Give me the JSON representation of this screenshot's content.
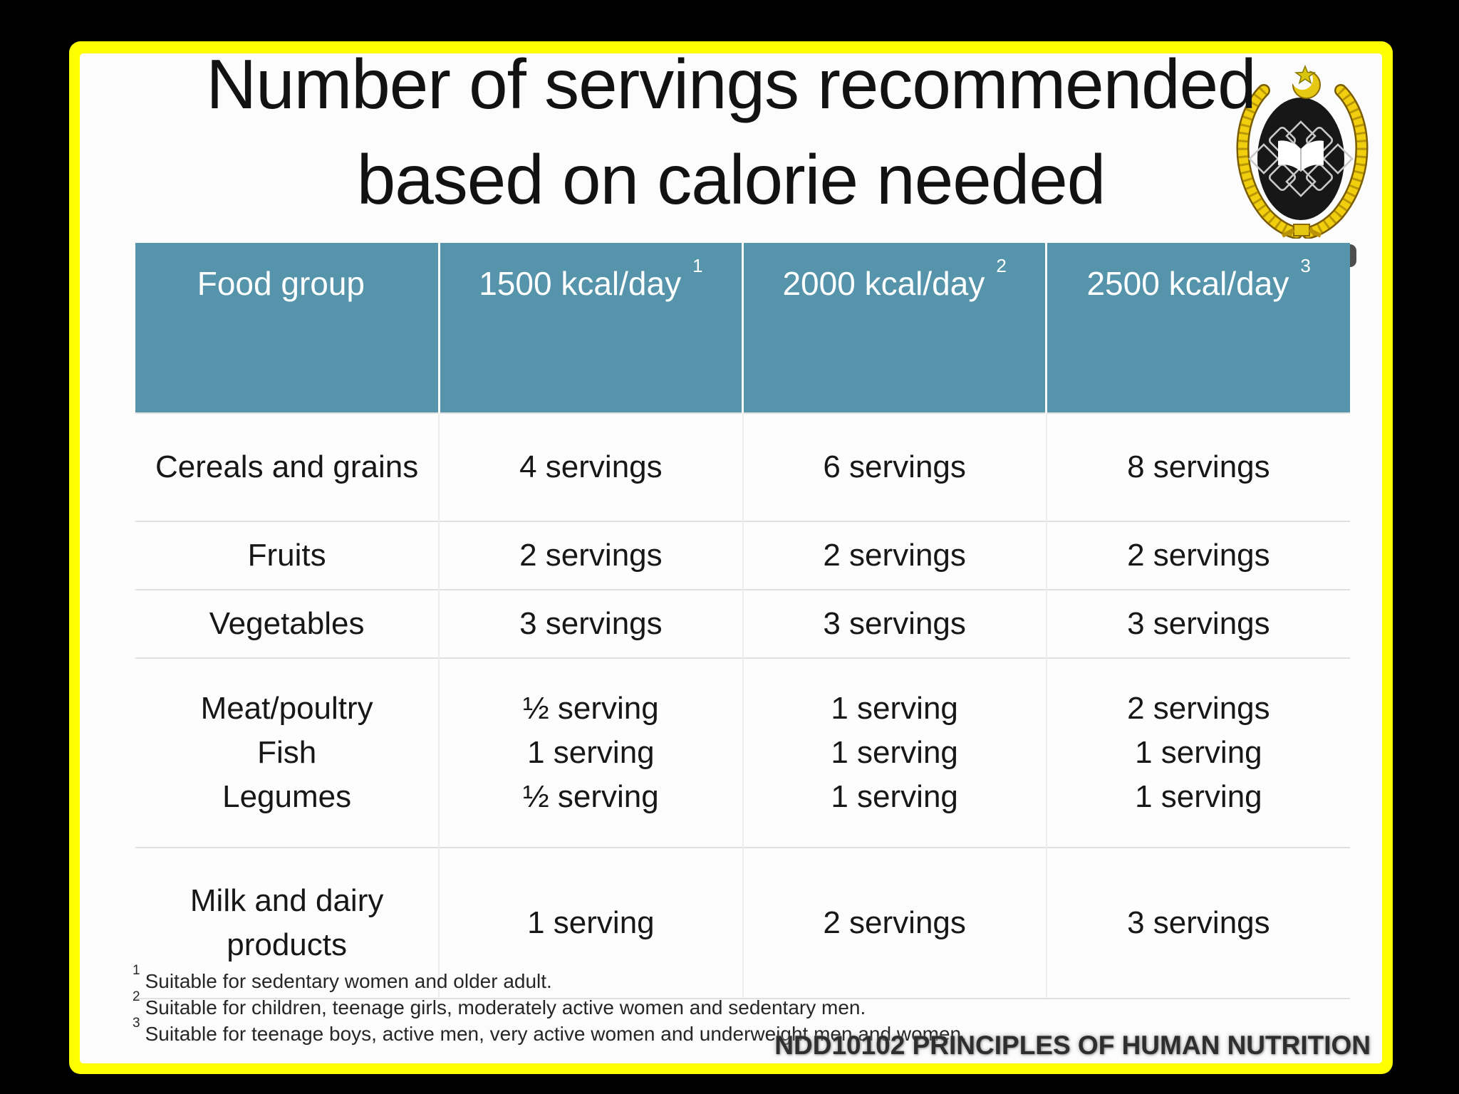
{
  "slide": {
    "title_line1": "Number of servings recommended",
    "title_line2": "based on calorie needed",
    "footer_text": "NDD10102 PRINCIPLES OF HUMAN NUTRITION"
  },
  "colors": {
    "frame_border": "#ffff00",
    "background": "#000000",
    "slide_bg": "#fcfcfd",
    "table_header_bg": "#5594aa",
    "table_header_text": "#ffffff",
    "logo_gold": "#edc90f",
    "logo_shield": "#171717"
  },
  "table": {
    "header": [
      {
        "label": "Food group",
        "sup": ""
      },
      {
        "label": "1500 kcal/day",
        "sup": "1"
      },
      {
        "label": "2000 kcal/day",
        "sup": "2"
      },
      {
        "label": "2500 kcal/day",
        "sup": "3"
      }
    ],
    "rows": [
      {
        "cells": [
          [
            "Cereals and grains"
          ],
          [
            "4 servings"
          ],
          [
            "6 servings"
          ],
          [
            "8 servings"
          ]
        ]
      },
      {
        "cells": [
          [
            "Fruits"
          ],
          [
            "2 servings"
          ],
          [
            "2 servings"
          ],
          [
            "2 servings"
          ]
        ]
      },
      {
        "cells": [
          [
            "Vegetables"
          ],
          [
            "3 servings"
          ],
          [
            "3 servings"
          ],
          [
            "3 servings"
          ]
        ]
      },
      {
        "cells": [
          [
            "Meat/poultry",
            "Fish",
            "Legumes"
          ],
          [
            "½ serving",
            "1 serving",
            "½ serving"
          ],
          [
            "1 serving",
            "1 serving",
            "1 serving"
          ],
          [
            "2 servings",
            "1 serving",
            "1 serving"
          ]
        ]
      },
      {
        "cells": [
          [
            "Milk and dairy",
            "products"
          ],
          [
            "1 serving"
          ],
          [
            "2 servings"
          ],
          [
            "3 servings"
          ]
        ]
      }
    ],
    "footnotes": [
      {
        "sup": "1",
        "text": "Suitable for sedentary women and older adult."
      },
      {
        "sup": "2",
        "text": "Suitable for children, teenage girls, moderately active women and sedentary men."
      },
      {
        "sup": "3",
        "text": "Suitable for teenage boys, active men, very active women and underweight men and women."
      }
    ]
  }
}
